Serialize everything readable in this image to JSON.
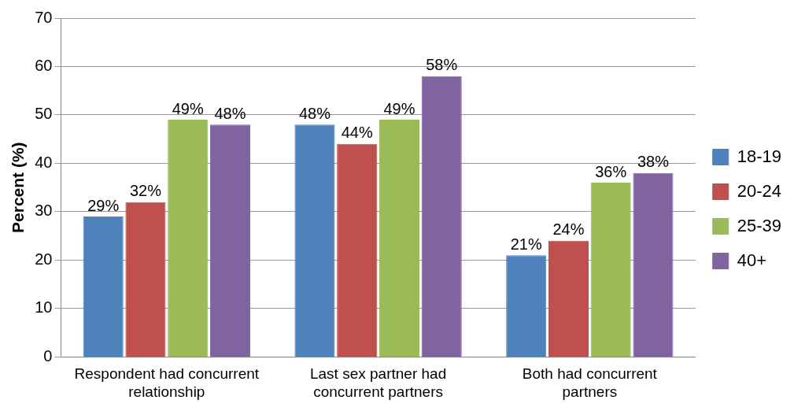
{
  "chart_data": {
    "type": "bar",
    "ylabel": "Percent (%)",
    "categories": [
      "Respondent had concurrent relationship",
      "Last sex partner had concurrent partners",
      "Both had concurrent partners"
    ],
    "series": [
      {
        "name": "18-19",
        "color": "#4f81bd",
        "values": [
          29,
          48,
          21
        ],
        "value_labels": [
          "29%",
          "48%",
          "21%"
        ]
      },
      {
        "name": "20-24",
        "color": "#c0504d",
        "values": [
          32,
          44,
          24
        ],
        "value_labels": [
          "32%",
          "44%",
          "24%"
        ]
      },
      {
        "name": "25-39",
        "color": "#9bbb59",
        "values": [
          49,
          49,
          36
        ],
        "value_labels": [
          "49%",
          "49%",
          "36%"
        ]
      },
      {
        "name": "40+",
        "color": "#8064a2",
        "values": [
          48,
          58,
          38
        ],
        "value_labels": [
          "48%",
          "58%",
          "38%"
        ]
      }
    ],
    "ylim": [
      0,
      70
    ],
    "yticks": [
      0,
      10,
      20,
      30,
      40,
      50,
      60,
      70
    ],
    "grid": "y",
    "legend": "right"
  }
}
